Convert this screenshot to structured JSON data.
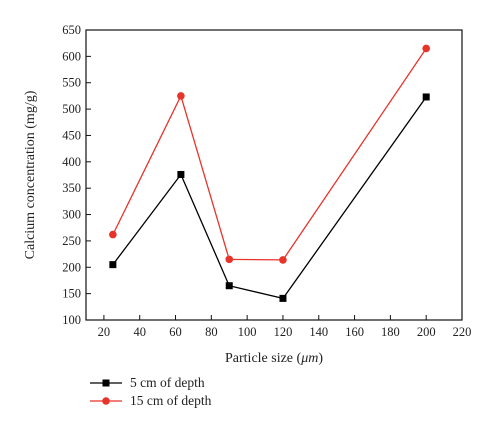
{
  "chart_data": {
    "type": "line",
    "xlabel_prefix": "Particle size (",
    "xlabel_unit": "μm",
    "xlabel_suffix": ")",
    "ylabel": "Calcium concentration (mg/g)",
    "xlim": [
      10,
      220
    ],
    "ylim": [
      100,
      650
    ],
    "xticks": [
      "20",
      "40",
      "60",
      "80",
      "100",
      "120",
      "140",
      "160",
      "180",
      "200",
      "220"
    ],
    "yticks": [
      "100",
      "150",
      "200",
      "250",
      "300",
      "350",
      "400",
      "450",
      "500",
      "550",
      "600",
      "650"
    ],
    "grid": false,
    "legend_position": "bottom-left",
    "x": [
      25,
      63,
      90,
      120,
      200
    ],
    "series": [
      {
        "name": "5 cm of depth",
        "values": [
          205,
          376,
          165,
          141,
          523
        ],
        "color": "#000000",
        "marker": "square"
      },
      {
        "name": "15 cm of depth",
        "values": [
          262,
          525,
          215,
          214,
          615
        ],
        "color": "#e8332a",
        "marker": "circle"
      }
    ]
  }
}
